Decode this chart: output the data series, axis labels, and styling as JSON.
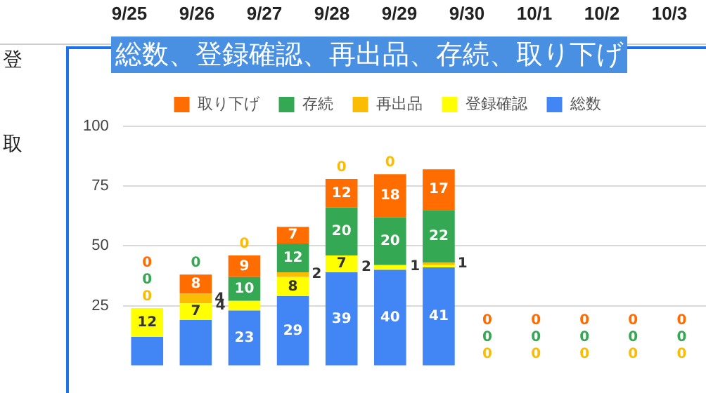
{
  "chart_data": {
    "type": "bar",
    "title": "総数、登録確認、再出品、存続、取り下げ",
    "stacked": true,
    "legend": "top",
    "grid": "y",
    "tick_labels": "y",
    "categories": [
      null,
      null,
      null,
      null,
      null,
      null,
      null,
      null,
      null,
      null,
      null,
      null
    ],
    "ylim": [
      0,
      100
    ],
    "yticks": [
      25,
      50,
      75,
      100
    ],
    "annotations": [
      "9/25",
      "9/26",
      "9/27",
      "9/28",
      "9/29",
      "9/30",
      "10/1",
      "10/2",
      "10/3",
      "登",
      "取"
    ],
    "series": [
      {
        "name": "総数",
        "color": "#4285f4",
        "values": [
          12,
          19,
          23,
          29,
          39,
          40,
          41,
          0,
          0,
          0,
          0,
          0
        ],
        "value_labels": [
          null,
          null,
          "23",
          "29",
          "39",
          "40",
          "41",
          null,
          null,
          null,
          null,
          null
        ]
      },
      {
        "name": "登録確認",
        "color": "#ffff00",
        "values": [
          12,
          7,
          4,
          8,
          7,
          2,
          1,
          0,
          0,
          0,
          0,
          0
        ],
        "value_labels": [
          "12",
          "7",
          "4",
          "8",
          "7",
          "2",
          "1",
          null,
          null,
          null,
          null,
          null
        ]
      },
      {
        "name": "再出品",
        "color": "#fbbc04",
        "values": [
          0,
          4,
          0,
          2,
          0,
          0,
          1,
          0,
          0,
          0,
          0,
          0
        ],
        "value_labels": [
          "0",
          "4",
          "0",
          "2",
          "0",
          "0",
          "1",
          "0",
          "0",
          "0",
          "0",
          "0"
        ]
      },
      {
        "name": "存続",
        "color": "#34a853",
        "values": [
          0,
          0,
          10,
          12,
          20,
          20,
          22,
          0,
          0,
          0,
          0,
          0
        ],
        "value_labels": [
          "0",
          "0",
          "10",
          "12",
          "20",
          "20",
          "22",
          "0",
          "0",
          "0",
          "0",
          "0"
        ]
      },
      {
        "name": "取り下げ",
        "color": "#ff6d01",
        "values": [
          0,
          8,
          9,
          7,
          12,
          18,
          17,
          0,
          0,
          0,
          0,
          0
        ],
        "value_labels": [
          "0",
          "8",
          "9",
          "7",
          "12",
          "18",
          "17",
          "0",
          "0",
          "0",
          "0",
          "0"
        ]
      }
    ]
  }
}
